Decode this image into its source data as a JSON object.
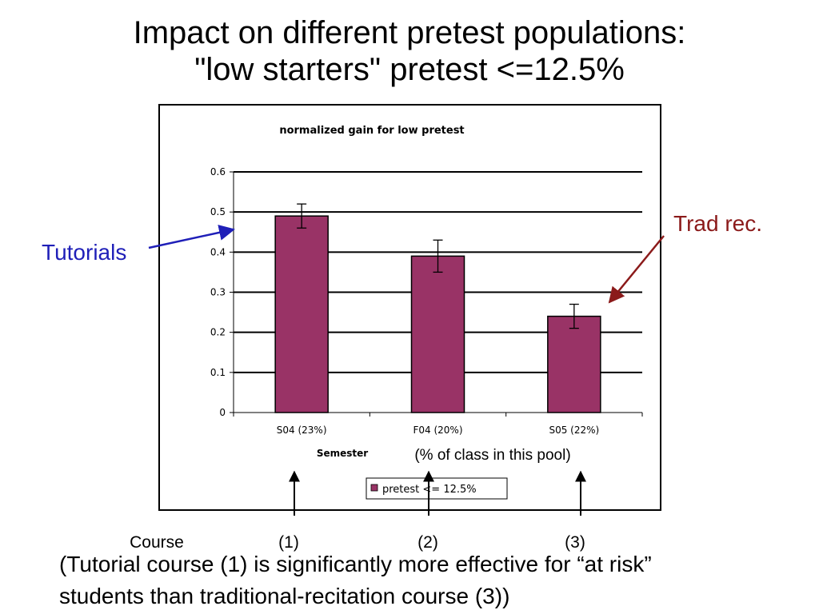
{
  "slide": {
    "title_line1": "Impact on different pretest populations:",
    "title_line2": "\"low starters\" pretest <=12.5%",
    "bottom_line1": "(Tutorial course (1) is significantly  more effective for “at risk”",
    "bottom_line2": "students than traditional-recitation course (3))"
  },
  "annotations": {
    "tutorials_label": "Tutorials",
    "trad_rec_label": "Trad rec.",
    "course_label": "Course",
    "course_numbers": [
      "(1)",
      "(2)",
      "(3)"
    ],
    "pool_note": "(% of class in this pool)",
    "colors": {
      "tutorials": "#1f1fb8",
      "trad_rec": "#8b1a1a"
    }
  },
  "chart_data": {
    "type": "bar",
    "title": "normalized gain for low pretest",
    "xlabel": "Semester",
    "ylabel": "",
    "categories": [
      "S04 (23%)",
      "F04 (20%)",
      "S05 (22%)"
    ],
    "series": [
      {
        "name": "pretest <= 12.5%",
        "values": [
          0.49,
          0.39,
          0.24
        ],
        "error": [
          0.03,
          0.04,
          0.03
        ],
        "color": "#993366"
      }
    ],
    "ylim": [
      0,
      0.6
    ],
    "yticks": [
      "0",
      "0.1",
      "0.2",
      "0.3",
      "0.4",
      "0.5",
      "0.6"
    ],
    "grid": true,
    "legend": "bottom"
  }
}
